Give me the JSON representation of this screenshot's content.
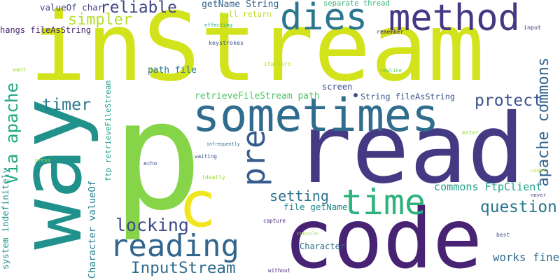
{
  "words": [
    {
      "text": "inStream",
      "color": "#d2e21b"
    },
    {
      "text": "p",
      "color": "#86d549"
    },
    {
      "text": "read",
      "color": "#443983"
    },
    {
      "text": "code",
      "color": "#482374"
    },
    {
      "text": "way",
      "color": "#21918c"
    },
    {
      "text": "sometimes",
      "color": "#2f6c8e"
    },
    {
      "text": "method",
      "color": "#453781"
    },
    {
      "text": "dies",
      "color": "#2a768e"
    },
    {
      "text": "c",
      "color": "#f1e51d"
    },
    {
      "text": "pre",
      "color": "#365c8d"
    },
    {
      "text": "time",
      "color": "#2db27d"
    },
    {
      "text": "reading",
      "color": "#31668e"
    },
    {
      "text": "reliable",
      "color": "#404688"
    },
    {
      "text": "simpler",
      "color": "#b5de2b"
    },
    {
      "text": "protect",
      "color": "#3b528b"
    },
    {
      "text": "apache commons",
      "color": "#32648e"
    },
    {
      "text": "timer",
      "color": "#2a788e"
    },
    {
      "text": "Via apache",
      "color": "#22a884"
    },
    {
      "text": "setting",
      "color": "#2c728e"
    },
    {
      "text": "question",
      "color": "#2a768e"
    },
    {
      "text": "locking",
      "color": "#3e4989"
    },
    {
      "text": "InputStream",
      "color": "#2f6b8e"
    },
    {
      "text": "works fine",
      "color": "#31688e"
    },
    {
      "text": "commons FtpClient",
      "color": "#1fa187"
    },
    {
      "text": "file getName",
      "color": "#238a8d"
    },
    {
      "text": "getName String",
      "color": "#33638d"
    },
    {
      "text": "separate thread",
      "color": "#35b779"
    },
    {
      "text": "null return",
      "color": "#bddf26"
    },
    {
      "text": "valueOf char",
      "color": "#404588"
    },
    {
      "text": "hangs fileAsString",
      "color": "#482575"
    },
    {
      "text": "retrieveFileStream path",
      "color": "#54c568"
    },
    {
      "text": "String fileAsString",
      "color": "#3b528b"
    },
    {
      "text": "path file",
      "color": "#2a778e"
    },
    {
      "text": "screen",
      "color": "#3e4a89"
    },
    {
      "text": "ftp retrieveFileStream",
      "color": "#1fa088"
    },
    {
      "text": "Character valueOf",
      "color": "#26828e"
    },
    {
      "text": "system indefinitely",
      "color": "#21918c"
    },
    {
      "text": "Character",
      "color": "#2c738e"
    },
    {
      "text": "effecting",
      "color": "#21a685"
    },
    {
      "text": "keystrokes",
      "color": "#3b528b"
    },
    {
      "text": "remember",
      "color": "#481b6d"
    },
    {
      "text": "input",
      "color": "#46327e"
    },
    {
      "text": "standard",
      "color": "#b8de29"
    },
    {
      "text": "newline",
      "color": "#5ec962"
    },
    {
      "text": "want",
      "color": "#a2da37"
    },
    {
      "text": "infrequently",
      "color": "#2e6e8e"
    },
    {
      "text": "waiting",
      "color": "#3a548c"
    },
    {
      "text": "enter",
      "color": "#93d741"
    },
    {
      "text": "echo",
      "color": "#3d4e8a"
    },
    {
      "text": "ideally",
      "color": "#9bd93c"
    },
    {
      "text": "press",
      "color": "#b0dd2f"
    },
    {
      "text": "capture",
      "color": "#482878"
    },
    {
      "text": "console",
      "color": "#a8db34"
    },
    {
      "text": "best",
      "color": "#3f4788"
    },
    {
      "text": "never",
      "color": "#424086"
    },
    {
      "text": "codes",
      "color": "#c2df23"
    },
    {
      "text": "without",
      "color": "#472c7a"
    }
  ]
}
